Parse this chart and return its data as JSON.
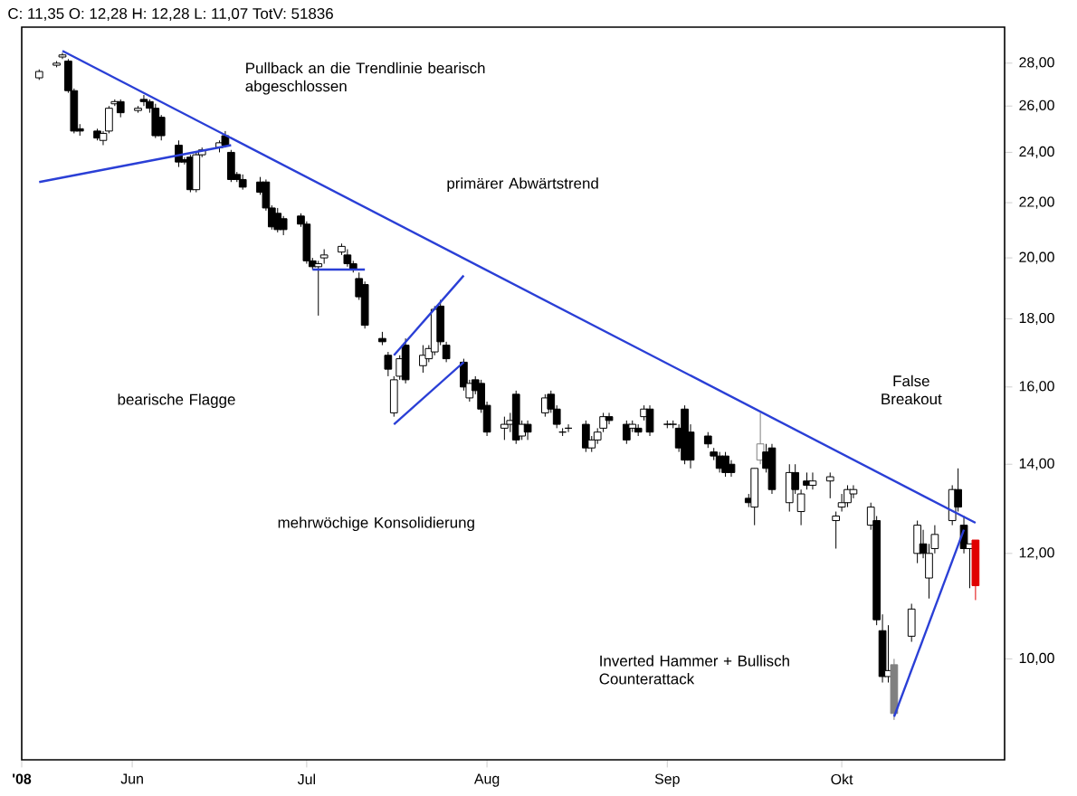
{
  "chart_data": {
    "type": "candlestick",
    "title": "C: 11,35 O: 12,28 H: 12,28 L: 11,07 TotV: 51836",
    "x": [
      "2008-05-16",
      "2008-05-19",
      "2008-05-20",
      "2008-05-21",
      "2008-05-22",
      "2008-05-23",
      "2008-05-26",
      "2008-05-27",
      "2008-05-28",
      "2008-05-29",
      "2008-05-30",
      "2008-06-02",
      "2008-06-03",
      "2008-06-04",
      "2008-06-05",
      "2008-06-06",
      "2008-06-09",
      "2008-06-10",
      "2008-06-11",
      "2008-06-12",
      "2008-06-13",
      "2008-06-16",
      "2008-06-17",
      "2008-06-18",
      "2008-06-19",
      "2008-06-20",
      "2008-06-23",
      "2008-06-24",
      "2008-06-25",
      "2008-06-26",
      "2008-06-27",
      "2008-06-30",
      "2008-07-01",
      "2008-07-02",
      "2008-07-03",
      "2008-07-04",
      "2008-07-07",
      "2008-07-08",
      "2008-07-09",
      "2008-07-10",
      "2008-07-11",
      "2008-07-14",
      "2008-07-15",
      "2008-07-16",
      "2008-07-17",
      "2008-07-18",
      "2008-07-21",
      "2008-07-22",
      "2008-07-23",
      "2008-07-24",
      "2008-07-25",
      "2008-07-28",
      "2008-07-29",
      "2008-07-30",
      "2008-07-31",
      "2008-08-01",
      "2008-08-04",
      "2008-08-05",
      "2008-08-06",
      "2008-08-07",
      "2008-08-08",
      "2008-08-11",
      "2008-08-12",
      "2008-08-13",
      "2008-08-14",
      "2008-08-15",
      "2008-08-18",
      "2008-08-19",
      "2008-08-20",
      "2008-08-21",
      "2008-08-22",
      "2008-08-25",
      "2008-08-26",
      "2008-08-27",
      "2008-08-28",
      "2008-08-29",
      "2008-09-01",
      "2008-09-02",
      "2008-09-03",
      "2008-09-04",
      "2008-09-05",
      "2008-09-08",
      "2008-09-09",
      "2008-09-10",
      "2008-09-11",
      "2008-09-12",
      "2008-09-15",
      "2008-09-16",
      "2008-09-17",
      "2008-09-18",
      "2008-09-19",
      "2008-09-22",
      "2008-09-23",
      "2008-09-24",
      "2008-09-25",
      "2008-09-26",
      "2008-09-29",
      "2008-09-30",
      "2008-10-01",
      "2008-10-02",
      "2008-10-03",
      "2008-10-06",
      "2008-10-07",
      "2008-10-08",
      "2008-10-09",
      "2008-10-10",
      "2008-10-13",
      "2008-10-14",
      "2008-10-15",
      "2008-10-16",
      "2008-10-17",
      "2008-10-20",
      "2008-10-21",
      "2008-10-22",
      "2008-10-23",
      "2008-10-24"
    ],
    "ohlc": [
      [
        27.3,
        27.7,
        27.2,
        27.6
      ],
      [
        27.9,
        28.1,
        27.8,
        28.0
      ],
      [
        28.3,
        28.5,
        28.2,
        28.4
      ],
      [
        28.1,
        28.2,
        26.6,
        26.7
      ],
      [
        26.7,
        26.8,
        24.8,
        24.9
      ],
      [
        25.0,
        25.2,
        24.7,
        24.9
      ],
      [
        24.9,
        25.0,
        24.5,
        24.6
      ],
      [
        24.5,
        24.9,
        24.3,
        24.8
      ],
      [
        24.9,
        26.0,
        24.8,
        25.9
      ],
      [
        26.1,
        26.3,
        26.0,
        26.2
      ],
      [
        26.2,
        26.3,
        25.5,
        25.7
      ],
      [
        25.8,
        26.0,
        25.7,
        25.9
      ],
      [
        26.3,
        26.5,
        26.0,
        26.2
      ],
      [
        26.2,
        26.3,
        25.7,
        25.9
      ],
      [
        25.9,
        26.1,
        24.6,
        24.7
      ],
      [
        25.5,
        25.6,
        24.5,
        24.7
      ],
      [
        24.3,
        24.5,
        23.4,
        23.6
      ],
      [
        23.7,
        23.8,
        23.5,
        23.6
      ],
      [
        23.8,
        23.9,
        22.4,
        22.5
      ],
      [
        22.5,
        24.0,
        22.4,
        23.9
      ],
      [
        23.9,
        24.2,
        23.8,
        24.1
      ],
      [
        24.2,
        24.5,
        24.0,
        24.4
      ],
      [
        24.7,
        24.9,
        24.2,
        24.3
      ],
      [
        24.0,
        24.1,
        22.8,
        22.9
      ],
      [
        23.1,
        23.2,
        22.8,
        22.9
      ],
      [
        22.9,
        23.1,
        22.5,
        22.6
      ],
      [
        22.8,
        23.0,
        22.3,
        22.4
      ],
      [
        22.8,
        22.9,
        21.7,
        21.8
      ],
      [
        21.8,
        21.9,
        21.0,
        21.1
      ],
      [
        21.6,
        21.8,
        20.9,
        21.0
      ],
      [
        21.4,
        21.5,
        20.8,
        21.0
      ],
      [
        21.5,
        21.6,
        21.1,
        21.2
      ],
      [
        21.2,
        21.3,
        19.8,
        19.9
      ],
      [
        19.9,
        20.0,
        19.6,
        19.7
      ],
      [
        19.7,
        19.9,
        18.1,
        19.8
      ],
      [
        20.0,
        20.3,
        19.8,
        20.1
      ],
      [
        20.2,
        20.5,
        20.1,
        20.4
      ],
      [
        20.1,
        20.3,
        19.7,
        19.8
      ],
      [
        19.8,
        19.9,
        19.5,
        19.6
      ],
      [
        19.3,
        19.5,
        18.6,
        18.7
      ],
      [
        19.1,
        19.2,
        17.7,
        17.8
      ],
      [
        17.4,
        17.6,
        17.2,
        17.3
      ],
      [
        16.9,
        17.0,
        16.3,
        16.5
      ],
      [
        15.3,
        16.3,
        15.2,
        16.2
      ],
      [
        16.3,
        16.9,
        16.2,
        16.8
      ],
      [
        17.2,
        17.4,
        16.1,
        16.2
      ],
      [
        16.6,
        17.2,
        16.4,
        16.9
      ],
      [
        16.8,
        17.2,
        16.7,
        17.1
      ],
      [
        17.0,
        18.4,
        16.9,
        18.3
      ],
      [
        18.4,
        18.6,
        17.2,
        17.3
      ],
      [
        17.2,
        17.3,
        16.7,
        16.8
      ],
      [
        16.7,
        16.8,
        15.9,
        16.0
      ],
      [
        15.7,
        16.2,
        15.6,
        16.1
      ],
      [
        16.2,
        16.3,
        15.8,
        15.9
      ],
      [
        16.1,
        16.2,
        15.3,
        15.4
      ],
      [
        15.5,
        15.6,
        14.7,
        14.8
      ],
      [
        14.9,
        15.2,
        14.6,
        15.0
      ],
      [
        15.0,
        15.3,
        14.8,
        15.1
      ],
      [
        15.8,
        15.9,
        14.5,
        14.6
      ],
      [
        14.7,
        15.1,
        14.6,
        15.0
      ],
      [
        15.0,
        15.1,
        14.6,
        14.8
      ],
      [
        15.3,
        15.8,
        15.2,
        15.7
      ],
      [
        15.8,
        15.9,
        15.3,
        15.4
      ],
      [
        15.4,
        15.5,
        14.9,
        15.0
      ],
      [
        14.8,
        14.9,
        14.7,
        14.8
      ],
      [
        14.9,
        15.0,
        14.8,
        14.9
      ],
      [
        15.0,
        15.1,
        14.3,
        14.4
      ],
      [
        14.4,
        14.7,
        14.3,
        14.6
      ],
      [
        14.6,
        14.9,
        14.5,
        14.8
      ],
      [
        14.9,
        15.3,
        14.8,
        15.2
      ],
      [
        15.2,
        15.3,
        15.0,
        15.1
      ],
      [
        15.0,
        15.1,
        14.5,
        14.6
      ],
      [
        14.9,
        15.1,
        14.8,
        15.0
      ],
      [
        14.9,
        15.0,
        14.7,
        14.8
      ],
      [
        15.2,
        15.5,
        15.1,
        15.4
      ],
      [
        15.4,
        15.5,
        14.7,
        14.8
      ],
      [
        15.0,
        15.1,
        14.9,
        15.0
      ],
      [
        15.0,
        15.1,
        14.9,
        15.0
      ],
      [
        14.9,
        15.0,
        14.3,
        14.4
      ],
      [
        15.4,
        15.5,
        14.0,
        14.1
      ],
      [
        14.8,
        15.0,
        13.9,
        14.1
      ],
      [
        14.7,
        14.8,
        14.4,
        14.5
      ],
      [
        14.3,
        14.4,
        14.1,
        14.2
      ],
      [
        14.2,
        14.3,
        13.8,
        13.9
      ],
      [
        14.2,
        14.3,
        13.7,
        13.8
      ],
      [
        14.0,
        14.1,
        13.7,
        13.8
      ],
      [
        13.2,
        13.3,
        13.0,
        13.1
      ],
      [
        13.0,
        13.9,
        12.6,
        13.9
      ],
      [
        14.1,
        15.3,
        14.0,
        14.5
      ],
      [
        14.3,
        14.5,
        13.8,
        13.9
      ],
      [
        14.4,
        14.5,
        13.3,
        13.4
      ],
      [
        13.1,
        14.0,
        12.9,
        13.8
      ],
      [
        13.8,
        14.0,
        13.3,
        13.4
      ],
      [
        12.9,
        13.4,
        12.6,
        13.3
      ],
      [
        13.6,
        13.8,
        13.4,
        13.5
      ],
      [
        13.5,
        13.8,
        13.4,
        13.6
      ],
      [
        13.6,
        13.8,
        13.2,
        13.7
      ],
      [
        12.7,
        12.9,
        12.1,
        12.8
      ],
      [
        13.0,
        13.3,
        12.9,
        13.1
      ],
      [
        13.1,
        13.5,
        13.0,
        13.4
      ],
      [
        13.3,
        13.5,
        13.2,
        13.4
      ],
      [
        12.6,
        13.1,
        12.5,
        13.0
      ],
      [
        12.7,
        12.8,
        10.6,
        10.7
      ],
      [
        10.5,
        10.8,
        9.6,
        9.7
      ],
      [
        9.7,
        10.6,
        9.6,
        9.8
      ],
      [
        9.9,
        10.0,
        9.0,
        9.1
      ],
      [
        10.4,
        11.0,
        10.3,
        10.9
      ],
      [
        12.0,
        12.7,
        11.8,
        12.6
      ],
      [
        12.2,
        12.5,
        11.9,
        12.0
      ],
      [
        11.5,
        12.2,
        11.1,
        12.0
      ],
      [
        12.1,
        12.6,
        12.0,
        12.4
      ],
      [
        12.7,
        13.5,
        12.6,
        13.4
      ],
      [
        13.4,
        13.9,
        12.9,
        13.0
      ],
      [
        12.6,
        12.8,
        12.0,
        12.1
      ],
      [
        12.1,
        12.2,
        11.3,
        12.2
      ],
      [
        12.28,
        12.28,
        11.07,
        11.35
      ]
    ],
    "colors": [
      "#000000",
      "#000000",
      "#000000",
      "#000000",
      "#000000",
      "#000000",
      "#000000",
      "#000000",
      "#000000",
      "#000000",
      "#000000",
      "#000000",
      "#000000",
      "#000000",
      "#000000",
      "#000000",
      "#000000",
      "#000000",
      "#000000",
      "#000000",
      "#000000",
      "#000000",
      "#000000",
      "#000000",
      "#000000",
      "#000000",
      "#000000",
      "#000000",
      "#000000",
      "#000000",
      "#000000",
      "#000000",
      "#000000",
      "#000000",
      "#000000",
      "#000000",
      "#000000",
      "#000000",
      "#000000",
      "#000000",
      "#000000",
      "#000000",
      "#000000",
      "#000000",
      "#000000",
      "#000000",
      "#000000",
      "#000000",
      "#000000",
      "#000000",
      "#000000",
      "#000000",
      "#000000",
      "#000000",
      "#000000",
      "#000000",
      "#000000",
      "#000000",
      "#000000",
      "#000000",
      "#000000",
      "#000000",
      "#000000",
      "#000000",
      "#000000",
      "#000000",
      "#000000",
      "#000000",
      "#000000",
      "#000000",
      "#000000",
      "#000000",
      "#000000",
      "#000000",
      "#000000",
      "#000000",
      "#000000",
      "#000000",
      "#000000",
      "#000000",
      "#000000",
      "#000000",
      "#000000",
      "#000000",
      "#000000",
      "#000000",
      "#000000",
      "#000000",
      "#808080",
      "#000000",
      "#000000",
      "#000000",
      "#000000",
      "#000000",
      "#000000",
      "#000000",
      "#000000",
      "#000000",
      "#000000",
      "#000000",
      "#000000",
      "#000000",
      "#000000",
      "#000000",
      "#000000",
      "#808080",
      "#000000",
      "#000000",
      "#000000",
      "#000000",
      "#000000",
      "#000000",
      "#000000",
      "#000000",
      "#000000",
      "#e00000"
    ],
    "series": [
      {
        "type": "line",
        "color": "#2a3fd6",
        "x": [
          "2008-05-20",
          "2008-10-24"
        ],
        "values": [
          28.6,
          12.65
        ]
      },
      {
        "type": "line",
        "color": "#2a3fd6",
        "x": [
          "2008-05-16",
          "2008-06-18"
        ],
        "values": [
          22.8,
          24.3
        ]
      },
      {
        "type": "line",
        "color": "#2a3fd6",
        "x": [
          "2008-07-02",
          "2008-07-11"
        ],
        "values": [
          19.6,
          19.6
        ]
      },
      {
        "type": "line",
        "color": "#2a3fd6",
        "x": [
          "2008-07-16",
          "2008-07-28"
        ],
        "values": [
          15.0,
          16.7
        ]
      },
      {
        "type": "line",
        "color": "#2a3fd6",
        "x": [
          "2008-07-16",
          "2008-07-28"
        ],
        "values": [
          16.9,
          19.4
        ]
      },
      {
        "type": "line",
        "color": "#2a3fd6",
        "x": [
          "2008-10-10",
          "2008-10-22"
        ],
        "values": [
          9.05,
          12.5
        ]
      }
    ],
    "log": true,
    "xlim": [
      "2008-05-13",
      "2008-10-29"
    ],
    "xticks": [
      {
        "value": "2008-05-13",
        "label": "'08"
      },
      {
        "value": "2008-06-01",
        "label": "Jun"
      },
      {
        "value": "2008-07-01",
        "label": "Jul"
      },
      {
        "value": "2008-08-01",
        "label": "Aug"
      },
      {
        "value": "2008-09-01",
        "label": "Sep"
      },
      {
        "value": "2008-10-01",
        "label": "Okt"
      }
    ],
    "ylim": [
      8.4,
      29.8
    ],
    "yticks": [
      {
        "value": 10,
        "label": "10,00"
      },
      {
        "value": 12,
        "label": "12,00"
      },
      {
        "value": 14,
        "label": "14,00"
      },
      {
        "value": 16,
        "label": "16,00"
      },
      {
        "value": 18,
        "label": "18,00"
      },
      {
        "value": 20,
        "label": "20,00"
      },
      {
        "value": 22,
        "label": "22,00"
      },
      {
        "value": 24,
        "label": "24,00"
      },
      {
        "value": 26,
        "label": "26,00"
      },
      {
        "value": 28,
        "label": "28,00"
      }
    ],
    "annotations": [
      "Pullback an die Trendlinie bearisch abgeschlossen",
      "primärer Abwärtstrend",
      "bearische Flagge",
      "mehrwöchige Konsolidierung",
      "Inverted Hammer + Bullisch Counterattack",
      "False Breakout"
    ]
  }
}
